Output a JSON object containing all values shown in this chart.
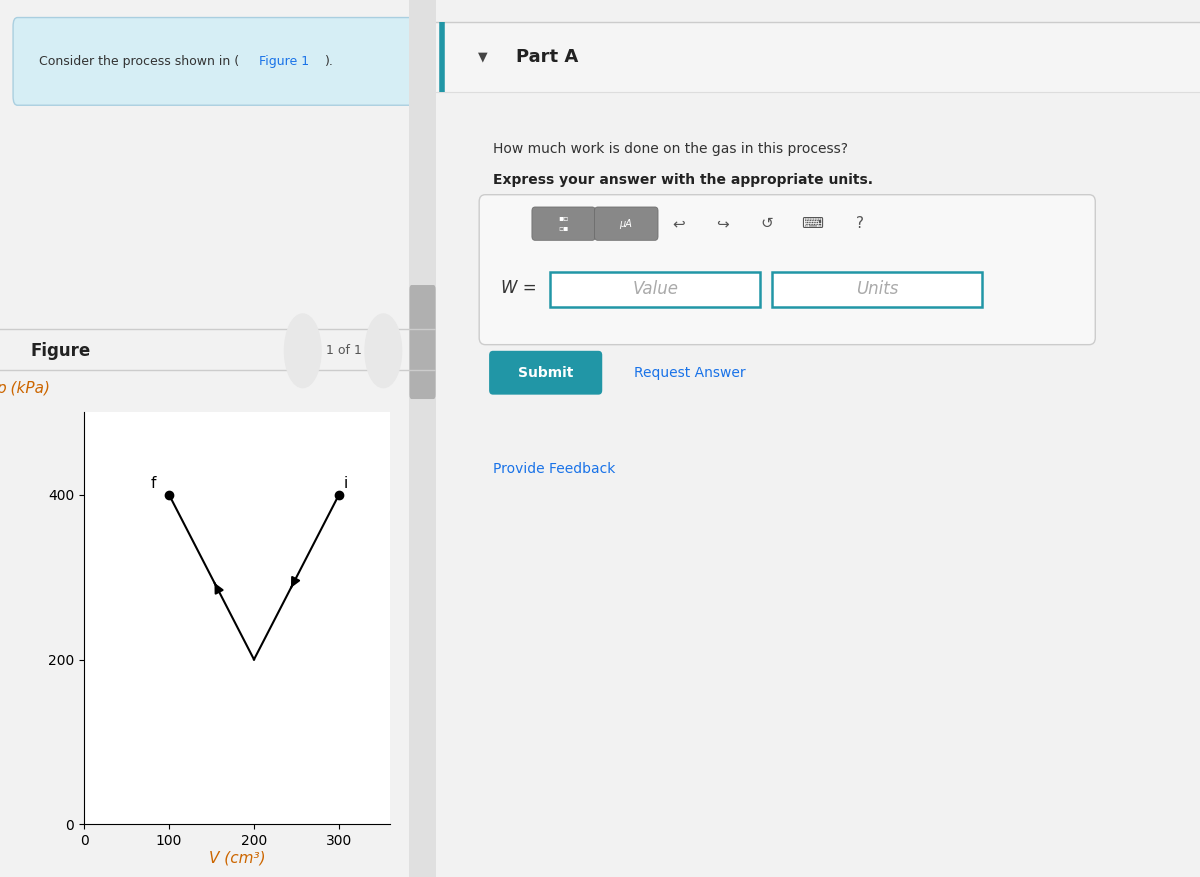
{
  "bg_color": "#f2f2f2",
  "left_panel_bg": "#ffffff",
  "right_panel_bg": "#ffffff",
  "header_bg": "#d6eef5",
  "consider_text": "Consider the process shown in (",
  "figure1_text": "Figure 1",
  "consider_text2": ").",
  "figure_label": "Figure",
  "nav_text": "1 of 1",
  "part_a_text": "Part A",
  "question_text": "How much work is done on the gas in this process?",
  "bold_text": "Express your answer with the appropriate units.",
  "w_label": "W =",
  "value_placeholder": "Value",
  "units_placeholder": "Units",
  "submit_text": "Submit",
  "submit_bg": "#2196A6",
  "request_answer_text": "Request Answer",
  "provide_feedback_text": "Provide Feedback",
  "link_color": "#1a73e8",
  "graph": {
    "xlabel": "V (cm³)",
    "ylabel": "p (kPa)",
    "xlabel_color": "#cc6600",
    "ylabel_color": "#cc6600",
    "xticks": [
      0,
      100,
      200,
      300
    ],
    "yticks": [
      0,
      200,
      400
    ],
    "xlim": [
      0,
      360
    ],
    "ylim": [
      0,
      500
    ],
    "x_f": 100,
    "y_f": 400,
    "x_m": 200,
    "y_m": 200,
    "x_i": 300,
    "y_i": 400,
    "line_color": "#000000",
    "point_color": "#000000",
    "point_size": 6
  },
  "divider_x": 0.363
}
